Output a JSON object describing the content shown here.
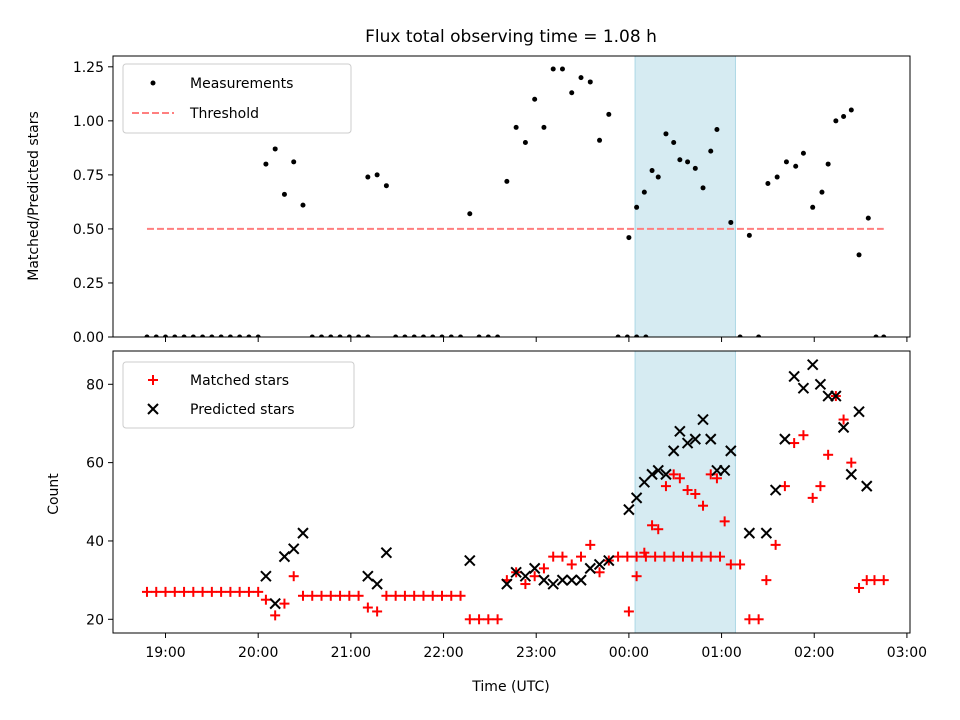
{
  "chart_data": [
    {
      "type": "scatter",
      "title": "Flux total observing time = 1.08 h",
      "xlabel": "",
      "ylabel": "Matched/Predicted stars",
      "xlim": [
        "18:26",
        "03:02"
      ],
      "ylim": [
        0,
        1.3
      ],
      "yticks": [
        "0.00",
        "0.25",
        "0.50",
        "0.75",
        "1.00",
        "1.25"
      ],
      "highlight": {
        "start": "00:04",
        "end": "01:09",
        "color": "#add8e6"
      },
      "legend_position": "upper left",
      "series": [
        {
          "name": "Measurements",
          "marker": "dot",
          "color": "#000000",
          "points": [
            [
              "18:48",
              0
            ],
            [
              "18:54",
              0
            ],
            [
              "19:00",
              0
            ],
            [
              "19:06",
              0
            ],
            [
              "19:12",
              0
            ],
            [
              "19:18",
              0
            ],
            [
              "19:24",
              0
            ],
            [
              "19:30",
              0
            ],
            [
              "19:36",
              0
            ],
            [
              "19:42",
              0
            ],
            [
              "19:48",
              0
            ],
            [
              "19:54",
              0
            ],
            [
              "20:00",
              0
            ],
            [
              "20:05",
              0.8
            ],
            [
              "20:11",
              0.87
            ],
            [
              "20:17",
              0.66
            ],
            [
              "20:23",
              0.81
            ],
            [
              "20:29",
              0.61
            ],
            [
              "20:35",
              0
            ],
            [
              "20:41",
              0
            ],
            [
              "20:47",
              0
            ],
            [
              "20:53",
              0
            ],
            [
              "20:59",
              0
            ],
            [
              "21:05",
              0
            ],
            [
              "21:11",
              0
            ],
            [
              "21:11",
              0.74
            ],
            [
              "21:17",
              0.75
            ],
            [
              "21:23",
              0.7
            ],
            [
              "21:29",
              0
            ],
            [
              "21:35",
              0
            ],
            [
              "21:41",
              0
            ],
            [
              "21:47",
              0
            ],
            [
              "21:53",
              0
            ],
            [
              "21:59",
              0
            ],
            [
              "22:05",
              0
            ],
            [
              "22:11",
              0
            ],
            [
              "22:17",
              0.57
            ],
            [
              "22:23",
              0
            ],
            [
              "22:29",
              0
            ],
            [
              "22:35",
              0
            ],
            [
              "22:41",
              0.72
            ],
            [
              "22:47",
              0.97
            ],
            [
              "22:53",
              0.9
            ],
            [
              "22:59",
              1.1
            ],
            [
              "23:05",
              0.97
            ],
            [
              "23:11",
              1.24
            ],
            [
              "23:17",
              1.24
            ],
            [
              "23:23",
              1.13
            ],
            [
              "23:29",
              1.2
            ],
            [
              "23:35",
              1.18
            ],
            [
              "23:41",
              0.91
            ],
            [
              "23:47",
              1.03
            ],
            [
              "23:53",
              0
            ],
            [
              "23:59",
              0
            ],
            [
              "00:05",
              0
            ],
            [
              "00:11",
              0
            ],
            [
              "00:00",
              0.46
            ],
            [
              "00:05",
              0.6
            ],
            [
              "00:10",
              0.67
            ],
            [
              "00:15",
              0.77
            ],
            [
              "00:19",
              0.74
            ],
            [
              "00:24",
              0.94
            ],
            [
              "00:29",
              0.9
            ],
            [
              "00:33",
              0.82
            ],
            [
              "00:38",
              0.81
            ],
            [
              "00:43",
              0.78
            ],
            [
              "00:48",
              0.69
            ],
            [
              "00:53",
              0.86
            ],
            [
              "00:57",
              0.96
            ],
            [
              "01:06",
              0.53
            ],
            [
              "01:12",
              0
            ],
            [
              "01:18",
              0.47
            ],
            [
              "01:24",
              0
            ],
            [
              "01:30",
              0.71
            ],
            [
              "01:36",
              0.74
            ],
            [
              "01:42",
              0.81
            ],
            [
              "01:48",
              0.79
            ],
            [
              "01:53",
              0.85
            ],
            [
              "01:59",
              0.6
            ],
            [
              "02:05",
              0.67
            ],
            [
              "02:09",
              0.8
            ],
            [
              "02:14",
              1.0
            ],
            [
              "02:19",
              1.02
            ],
            [
              "02:24",
              1.05
            ],
            [
              "02:29",
              0.38
            ],
            [
              "02:35",
              0.55
            ],
            [
              "02:40",
              0
            ],
            [
              "02:45",
              0
            ]
          ]
        },
        {
          "name": "Threshold",
          "marker": "dashed-line",
          "color": "#ff7f7f",
          "points": [
            [
              "18:48",
              0.5
            ],
            [
              "02:45",
              0.5
            ]
          ]
        }
      ]
    },
    {
      "type": "scatter",
      "title": "",
      "xlabel": "Time (UTC)",
      "ylabel": "Count",
      "xlim": [
        "18:26",
        "03:02"
      ],
      "xticks": [
        "19:00",
        "20:00",
        "21:00",
        "22:00",
        "23:00",
        "00:00",
        "01:00",
        "02:00",
        "03:00"
      ],
      "ylim": [
        16.5,
        88.5
      ],
      "yticks": [
        "20",
        "40",
        "60",
        "80"
      ],
      "highlight": {
        "start": "00:04",
        "end": "01:09",
        "color": "#add8e6"
      },
      "legend_position": "upper left",
      "series": [
        {
          "name": "Matched stars",
          "marker": "plus",
          "color": "#ff0000",
          "points": [
            [
              "18:48",
              27
            ],
            [
              "18:54",
              27
            ],
            [
              "19:00",
              27
            ],
            [
              "19:06",
              27
            ],
            [
              "19:12",
              27
            ],
            [
              "19:18",
              27
            ],
            [
              "19:24",
              27
            ],
            [
              "19:30",
              27
            ],
            [
              "19:36",
              27
            ],
            [
              "19:42",
              27
            ],
            [
              "19:48",
              27
            ],
            [
              "19:54",
              27
            ],
            [
              "20:00",
              27
            ],
            [
              "20:05",
              25
            ],
            [
              "20:11",
              21
            ],
            [
              "20:17",
              24
            ],
            [
              "20:23",
              31
            ],
            [
              "20:29",
              26
            ],
            [
              "20:35",
              26
            ],
            [
              "20:41",
              26
            ],
            [
              "20:47",
              26
            ],
            [
              "20:53",
              26
            ],
            [
              "20:59",
              26
            ],
            [
              "21:05",
              26
            ],
            [
              "21:11",
              23
            ],
            [
              "21:17",
              22
            ],
            [
              "21:23",
              26
            ],
            [
              "21:29",
              26
            ],
            [
              "21:35",
              26
            ],
            [
              "21:41",
              26
            ],
            [
              "21:47",
              26
            ],
            [
              "21:53",
              26
            ],
            [
              "21:59",
              26
            ],
            [
              "22:05",
              26
            ],
            [
              "22:11",
              26
            ],
            [
              "22:17",
              20
            ],
            [
              "22:23",
              20
            ],
            [
              "22:29",
              20
            ],
            [
              "22:35",
              20
            ],
            [
              "22:41",
              30
            ],
            [
              "22:47",
              32
            ],
            [
              "22:53",
              29
            ],
            [
              "22:59",
              31
            ],
            [
              "23:05",
              33
            ],
            [
              "23:11",
              36
            ],
            [
              "23:17",
              36
            ],
            [
              "23:23",
              34
            ],
            [
              "23:29",
              36
            ],
            [
              "23:35",
              39
            ],
            [
              "23:41",
              32
            ],
            [
              "23:47",
              35
            ],
            [
              "23:53",
              36
            ],
            [
              "23:59",
              36
            ],
            [
              "00:05",
              36
            ],
            [
              "00:11",
              36
            ],
            [
              "00:17",
              36
            ],
            [
              "00:23",
              36
            ],
            [
              "00:29",
              36
            ],
            [
              "00:35",
              36
            ],
            [
              "00:41",
              36
            ],
            [
              "00:47",
              36
            ],
            [
              "00:53",
              36
            ],
            [
              "00:59",
              36
            ],
            [
              "00:00",
              22
            ],
            [
              "00:05",
              31
            ],
            [
              "00:10",
              37
            ],
            [
              "00:15",
              44
            ],
            [
              "00:19",
              43
            ],
            [
              "00:24",
              54
            ],
            [
              "00:29",
              57
            ],
            [
              "00:33",
              56
            ],
            [
              "00:38",
              53
            ],
            [
              "00:43",
              52
            ],
            [
              "00:48",
              49
            ],
            [
              "00:53",
              57
            ],
            [
              "00:57",
              56
            ],
            [
              "01:02",
              45
            ],
            [
              "01:06",
              34
            ],
            [
              "01:12",
              34
            ],
            [
              "01:18",
              20
            ],
            [
              "01:24",
              20
            ],
            [
              "01:29",
              30
            ],
            [
              "01:35",
              39
            ],
            [
              "01:41",
              54
            ],
            [
              "01:47",
              65
            ],
            [
              "01:53",
              67
            ],
            [
              "01:59",
              51
            ],
            [
              "02:04",
              54
            ],
            [
              "02:09",
              62
            ],
            [
              "02:14",
              77
            ],
            [
              "02:19",
              71
            ],
            [
              "02:24",
              60
            ],
            [
              "02:29",
              28
            ],
            [
              "02:34",
              30
            ],
            [
              "02:39",
              30
            ],
            [
              "02:45",
              30
            ]
          ]
        },
        {
          "name": "Predicted stars",
          "marker": "x",
          "color": "#000000",
          "points": [
            [
              "20:05",
              31
            ],
            [
              "20:11",
              24
            ],
            [
              "20:17",
              36
            ],
            [
              "20:23",
              38
            ],
            [
              "20:29",
              42
            ],
            [
              "21:11",
              31
            ],
            [
              "21:17",
              29
            ],
            [
              "21:23",
              37
            ],
            [
              "22:17",
              35
            ],
            [
              "22:41",
              29
            ],
            [
              "22:47",
              32
            ],
            [
              "22:53",
              31
            ],
            [
              "22:59",
              33
            ],
            [
              "23:05",
              30
            ],
            [
              "23:11",
              29
            ],
            [
              "23:17",
              30
            ],
            [
              "23:23",
              30
            ],
            [
              "23:29",
              30
            ],
            [
              "23:35",
              33
            ],
            [
              "23:41",
              34
            ],
            [
              "23:47",
              35
            ],
            [
              "00:00",
              48
            ],
            [
              "00:05",
              51
            ],
            [
              "00:10",
              55
            ],
            [
              "00:15",
              57
            ],
            [
              "00:19",
              58
            ],
            [
              "00:24",
              57
            ],
            [
              "00:29",
              63
            ],
            [
              "00:33",
              68
            ],
            [
              "00:38",
              65
            ],
            [
              "00:43",
              66
            ],
            [
              "00:48",
              71
            ],
            [
              "00:53",
              66
            ],
            [
              "00:57",
              58
            ],
            [
              "01:02",
              58
            ],
            [
              "01:06",
              63
            ],
            [
              "01:18",
              42
            ],
            [
              "01:29",
              42
            ],
            [
              "01:35",
              53
            ],
            [
              "01:41",
              66
            ],
            [
              "01:47",
              82
            ],
            [
              "01:53",
              79
            ],
            [
              "01:59",
              85
            ],
            [
              "02:04",
              80
            ],
            [
              "02:09",
              77
            ],
            [
              "02:14",
              77
            ],
            [
              "02:19",
              69
            ],
            [
              "02:24",
              57
            ],
            [
              "02:29",
              73
            ],
            [
              "02:34",
              54
            ]
          ]
        }
      ]
    }
  ]
}
